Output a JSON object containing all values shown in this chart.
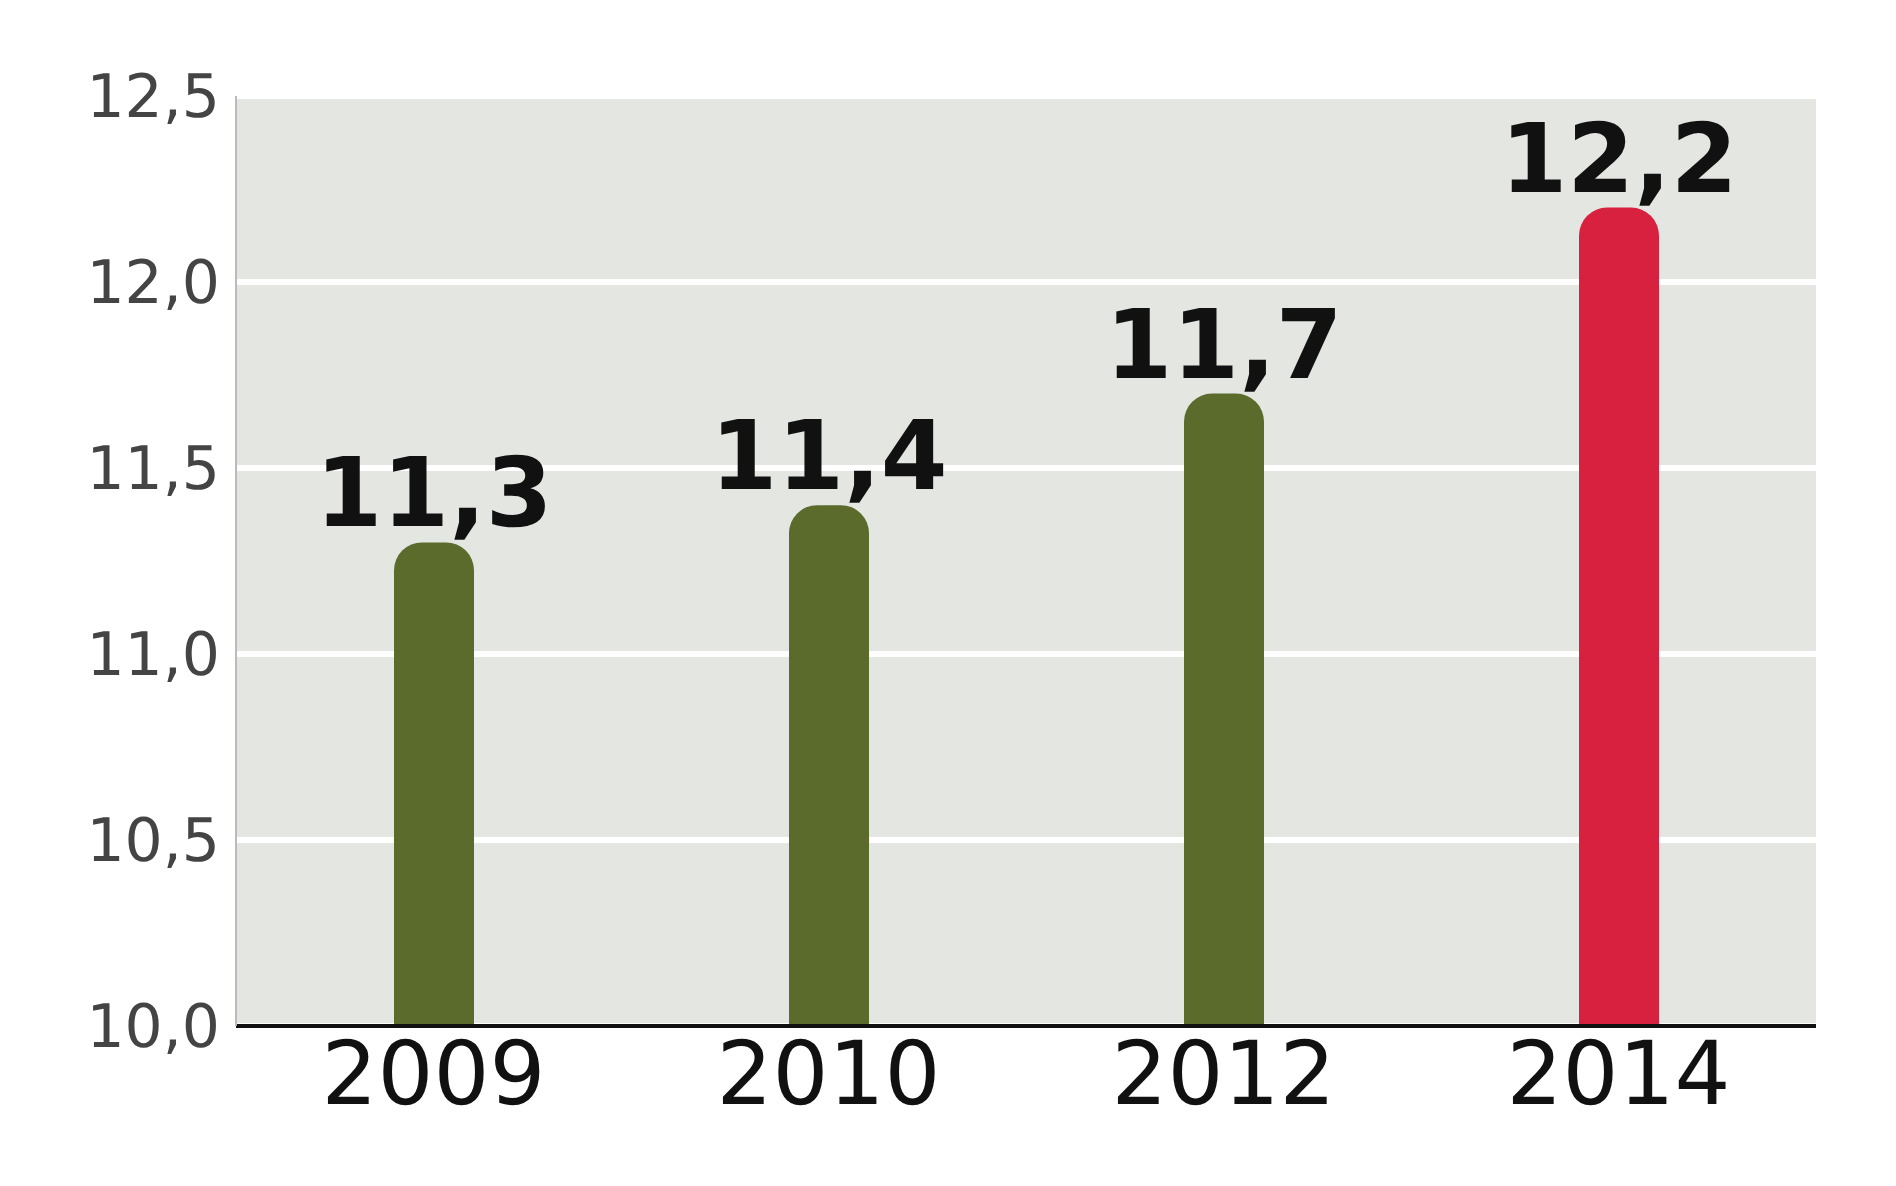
{
  "chart_data": {
    "type": "bar",
    "categories": [
      "2009",
      "2010",
      "2012",
      "2014"
    ],
    "values": [
      11.3,
      11.4,
      11.7,
      12.2
    ],
    "colors": [
      "#5b6b2c",
      "#5b6b2c",
      "#5b6b2c",
      "#d8203f"
    ],
    "value_labels": [
      "11,3",
      "11,4",
      "11,7",
      "12,2"
    ],
    "ylim": [
      10,
      12.5
    ],
    "yticks": [
      {
        "value": 10,
        "label": "10,0"
      },
      {
        "value": 10.5,
        "label": "10,5"
      },
      {
        "value": 11,
        "label": "11,0"
      },
      {
        "value": 11.5,
        "label": "11,5"
      },
      {
        "value": 12,
        "label": "12,0"
      },
      {
        "value": 12.5,
        "label": "12,5"
      }
    ],
    "grid": "y"
  }
}
